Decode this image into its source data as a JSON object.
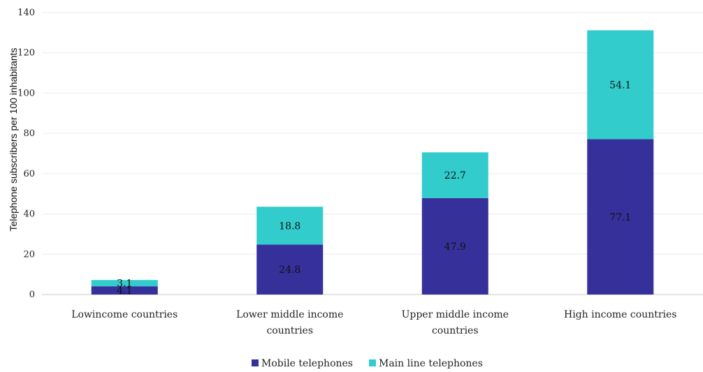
{
  "chart_data": {
    "type": "bar",
    "stacked": true,
    "categories": [
      [
        "Lowincome countries"
      ],
      [
        "Lower middle income",
        "countries"
      ],
      [
        "Upper middle income",
        "countries"
      ],
      [
        "High income countries"
      ]
    ],
    "series": [
      {
        "name": "Mobile telephones",
        "values": [
          4.1,
          24.8,
          47.9,
          77.1
        ],
        "labels": [
          "4.1",
          "24.8",
          "47.9",
          "77.1"
        ],
        "color": "#36309a"
      },
      {
        "name": "Main line telephones",
        "values": [
          3.1,
          18.8,
          22.7,
          54.1
        ],
        "labels": [
          "3.1",
          "18.8",
          "22.7",
          "54.1"
        ],
        "color": "#33cccc"
      }
    ],
    "ylabel": "Telephone subscribers per 100 inhabitants",
    "xlabel": "",
    "ylim": [
      0,
      140
    ],
    "yticks": [
      0,
      20,
      40,
      60,
      80,
      100,
      120,
      140
    ],
    "grid": true,
    "legend_position": "bottom"
  }
}
